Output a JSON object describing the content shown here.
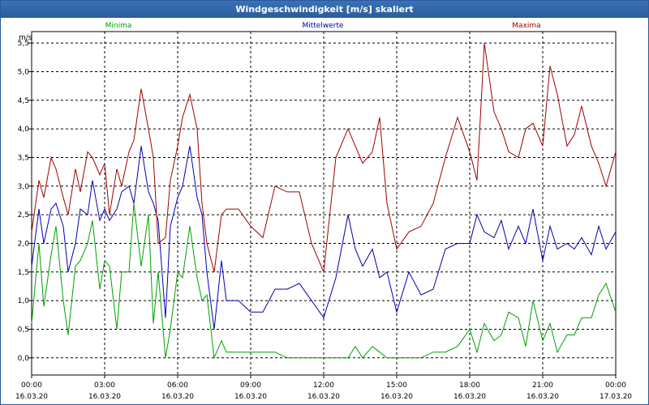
{
  "window": {
    "title": "Windgeschwindigkeit [m/s] skaliert"
  },
  "chart_data": {
    "type": "line",
    "title": "Windgeschwindigkeit [m/s] skaliert",
    "ylabel": "m/s",
    "ylim": [
      -0.3,
      5.7
    ],
    "xlim": [
      0,
      24
    ],
    "grid": true,
    "legend_position": "top",
    "y_ticks": [
      "0,0",
      "0,5",
      "1,0",
      "1,5",
      "2,0",
      "2,5",
      "3,0",
      "3,5",
      "4,0",
      "4,5",
      "5,0",
      "5,5"
    ],
    "x_ticks": [
      {
        "time": "00:00",
        "date": "16.03.20"
      },
      {
        "time": "03:00",
        "date": "16.03.20"
      },
      {
        "time": "06:00",
        "date": "16.03.20"
      },
      {
        "time": "09:00",
        "date": "16.03.20"
      },
      {
        "time": "12:00",
        "date": "16.03.20"
      },
      {
        "time": "15:00",
        "date": "16.03.20"
      },
      {
        "time": "18:00",
        "date": "16.03.20"
      },
      {
        "time": "21:00",
        "date": "16.03.20"
      },
      {
        "time": "00:00",
        "date": "17.03.20"
      }
    ],
    "x_unit": "hours since 16.03.20 00:00",
    "series": [
      {
        "name": "Minima",
        "color": "#00a000",
        "x": [
          0,
          0.3,
          0.5,
          0.8,
          1,
          1.3,
          1.5,
          1.8,
          2,
          2.3,
          2.5,
          2.8,
          3,
          3.2,
          3.5,
          3.7,
          4,
          4.2,
          4.5,
          4.8,
          5,
          5.2,
          5.5,
          5.7,
          6,
          6.2,
          6.5,
          6.8,
          7,
          7.2,
          7.5,
          7.8,
          8,
          8.5,
          9,
          9.5,
          10,
          10.5,
          11,
          11.5,
          12,
          12.5,
          13,
          13.3,
          13.6,
          14,
          14.3,
          14.6,
          15,
          15.5,
          16,
          16.5,
          17,
          17.5,
          18,
          18.3,
          18.6,
          19,
          19.3,
          19.6,
          20,
          20.3,
          20.6,
          21,
          21.3,
          21.6,
          22,
          22.3,
          22.6,
          23,
          23.3,
          23.6,
          24
        ],
        "values": [
          0.6,
          2.0,
          0.9,
          1.8,
          2.3,
          1.0,
          0.4,
          1.6,
          1.7,
          2.0,
          2.4,
          1.2,
          1.7,
          1.6,
          0.5,
          1.5,
          1.5,
          2.7,
          1.6,
          2.5,
          0.6,
          1.5,
          0.0,
          0.5,
          1.5,
          1.4,
          2.3,
          1.4,
          1.0,
          1.1,
          0.0,
          0.3,
          0.1,
          0.1,
          0.1,
          0.1,
          0.1,
          0.0,
          0.0,
          0.0,
          0.0,
          0.0,
          0.0,
          0.2,
          0.0,
          0.2,
          0.1,
          0.0,
          0.0,
          0.0,
          0.0,
          0.1,
          0.1,
          0.2,
          0.5,
          0.1,
          0.6,
          0.3,
          0.4,
          0.8,
          0.7,
          0.2,
          1.0,
          0.3,
          0.6,
          0.1,
          0.4,
          0.4,
          0.7,
          0.7,
          1.1,
          1.3,
          0.8
        ]
      },
      {
        "name": "Mittelwerte",
        "color": "#0000b0",
        "x": [
          0,
          0.3,
          0.5,
          0.8,
          1,
          1.3,
          1.5,
          1.8,
          2,
          2.3,
          2.5,
          2.8,
          3,
          3.2,
          3.5,
          3.7,
          4,
          4.2,
          4.5,
          4.8,
          5,
          5.2,
          5.5,
          5.7,
          6,
          6.2,
          6.5,
          6.8,
          7,
          7.2,
          7.5,
          7.8,
          8,
          8.5,
          9,
          9.5,
          10,
          10.5,
          11,
          11.5,
          12,
          12.5,
          13,
          13.3,
          13.6,
          14,
          14.3,
          14.6,
          15,
          15.5,
          16,
          16.5,
          17,
          17.5,
          18,
          18.3,
          18.6,
          19,
          19.3,
          19.6,
          20,
          20.3,
          20.6,
          21,
          21.3,
          21.6,
          22,
          22.3,
          22.6,
          23,
          23.3,
          23.6,
          24
        ],
        "values": [
          1.6,
          2.6,
          2.0,
          2.6,
          2.7,
          2.3,
          1.5,
          2.0,
          2.6,
          2.5,
          3.1,
          2.4,
          2.6,
          2.4,
          2.6,
          2.9,
          3.0,
          2.7,
          3.7,
          2.9,
          2.7,
          2.4,
          0.7,
          2.3,
          2.8,
          3.0,
          3.7,
          2.8,
          2.5,
          1.5,
          0.5,
          1.7,
          1.0,
          1.0,
          0.8,
          0.8,
          1.2,
          1.2,
          1.3,
          1.0,
          0.7,
          1.4,
          2.5,
          1.9,
          1.6,
          1.9,
          1.4,
          1.5,
          0.8,
          1.5,
          1.1,
          1.2,
          1.9,
          2.0,
          2.0,
          2.5,
          2.2,
          2.1,
          2.4,
          1.9,
          2.3,
          2.0,
          2.6,
          1.7,
          2.3,
          1.9,
          2.0,
          1.9,
          2.1,
          1.8,
          2.3,
          1.9,
          2.2
        ]
      },
      {
        "name": "Maxima",
        "color": "#a00000",
        "x": [
          0,
          0.3,
          0.5,
          0.8,
          1,
          1.3,
          1.5,
          1.8,
          2,
          2.3,
          2.5,
          2.8,
          3,
          3.2,
          3.5,
          3.7,
          4,
          4.2,
          4.5,
          4.8,
          5,
          5.2,
          5.5,
          5.7,
          6,
          6.2,
          6.5,
          6.8,
          7,
          7.2,
          7.5,
          7.8,
          8,
          8.5,
          9,
          9.5,
          10,
          10.5,
          11,
          11.5,
          12,
          12.5,
          13,
          13.3,
          13.6,
          14,
          14.3,
          14.6,
          15,
          15.5,
          16,
          16.5,
          17,
          17.5,
          18,
          18.3,
          18.6,
          19,
          19.3,
          19.6,
          20,
          20.3,
          20.6,
          21,
          21.3,
          21.6,
          22,
          22.3,
          22.6,
          23,
          23.3,
          23.6,
          24
        ],
        "values": [
          2.2,
          3.1,
          2.8,
          3.5,
          3.3,
          2.8,
          2.5,
          3.3,
          2.9,
          3.6,
          3.5,
          3.2,
          3.4,
          2.5,
          3.3,
          3.0,
          3.6,
          3.8,
          4.7,
          4.0,
          3.5,
          2.0,
          2.1,
          3.1,
          3.7,
          4.2,
          4.6,
          4.0,
          2.7,
          2.0,
          1.5,
          2.5,
          2.6,
          2.6,
          2.3,
          2.1,
          3.0,
          2.9,
          2.9,
          2.0,
          1.5,
          3.5,
          4.0,
          3.7,
          3.4,
          3.6,
          4.2,
          2.7,
          1.9,
          2.2,
          2.3,
          2.7,
          3.5,
          4.2,
          3.6,
          3.1,
          5.5,
          4.3,
          4.0,
          3.6,
          3.5,
          4.0,
          4.1,
          3.7,
          5.1,
          4.6,
          3.7,
          3.9,
          4.4,
          3.7,
          3.4,
          3.0,
          3.6
        ]
      }
    ]
  }
}
